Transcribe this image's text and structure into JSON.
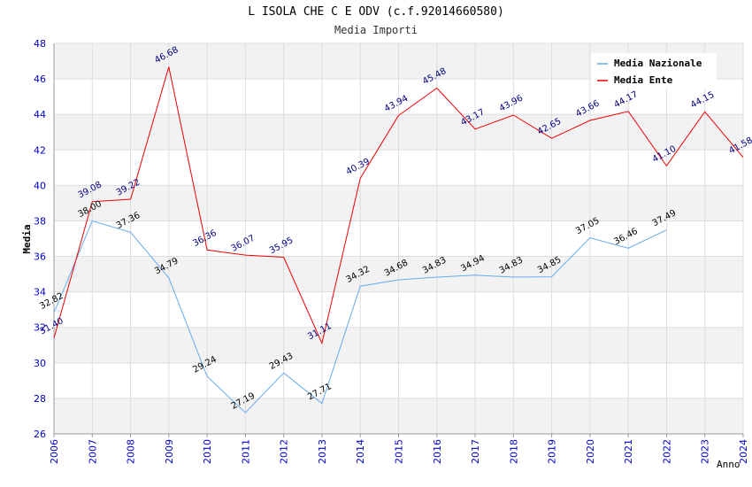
{
  "chart_data": {
    "type": "line",
    "title": "L ISOLA CHE C E ODV (c.f.92014660580)",
    "subtitle": "Media Importi",
    "xlabel": "Anno",
    "ylabel": "Media",
    "ylim": [
      26,
      48
    ],
    "yticks": [
      "26",
      "28",
      "30",
      "32",
      "34",
      "36",
      "38",
      "40",
      "42",
      "44",
      "46",
      "48"
    ],
    "categories": [
      "2006",
      "2007",
      "2008",
      "2009",
      "2010",
      "2011",
      "2012",
      "2013",
      "2014",
      "2015",
      "2016",
      "2017",
      "2018",
      "2019",
      "2020",
      "2021",
      "2022",
      "2023",
      "2024"
    ],
    "series": [
      {
        "name": "Media Nazionale",
        "color": "#66aaee",
        "values": [
          32.82,
          38.0,
          37.36,
          34.79,
          29.24,
          27.19,
          29.43,
          27.71,
          34.32,
          34.68,
          34.83,
          34.94,
          34.83,
          34.85,
          37.05,
          36.46,
          37.49,
          null,
          null
        ],
        "labels": [
          "32.82",
          "38.00",
          "37.36",
          "34.79",
          "29.24",
          "27.19",
          "29.43",
          "27.71",
          "34.32",
          "34.68",
          "34.83",
          "34.94",
          "34.83",
          "34.85",
          "37.05",
          "36.46",
          "37.49",
          null,
          null
        ]
      },
      {
        "name": "Media Ente",
        "color": "#ee0000",
        "values": [
          31.4,
          39.08,
          39.22,
          46.68,
          36.36,
          36.07,
          35.95,
          31.11,
          40.39,
          43.94,
          45.48,
          43.17,
          43.96,
          42.65,
          43.66,
          44.17,
          41.1,
          44.15,
          41.58
        ],
        "labels": [
          "31.40",
          "39.08",
          "39.22",
          "46.68",
          "36.36",
          "36.07",
          "35.95",
          "31.11",
          "40.39",
          "43.94",
          "45.48",
          "43.17",
          "43.96",
          "42.65",
          "43.66",
          "44.17",
          "41.10",
          "44.15",
          "41.58"
        ]
      }
    ],
    "legend_position": "top-right",
    "grid": true
  }
}
